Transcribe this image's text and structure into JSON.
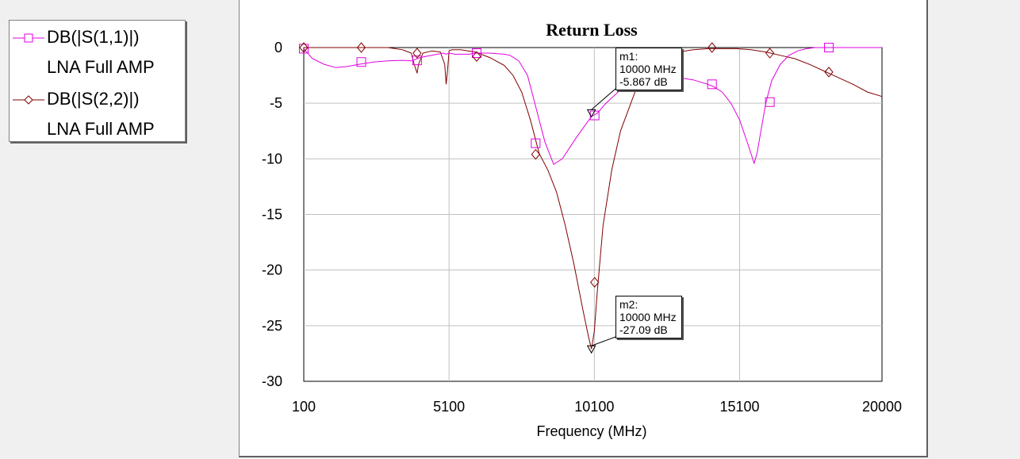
{
  "legend": {
    "items": [
      {
        "line1": "DB(|S(1,1)|)",
        "line2": "LNA Full AMP",
        "color": "#e000e0",
        "symbol": "square"
      },
      {
        "line1": "DB(|S(2,2)|)",
        "line2": "LNA Full AMP",
        "color": "#800000",
        "symbol": "diamond"
      }
    ]
  },
  "markers": [
    {
      "name": "m1:",
      "freq": "10000 MHz",
      "value": "-5.867 dB"
    },
    {
      "name": "m2:",
      "freq": "10000 MHz",
      "value": "-27.09 dB"
    }
  ],
  "chart_data": {
    "type": "line",
    "title": "Return Loss",
    "xlabel": "Frequency (MHz)",
    "ylabel": "",
    "xlim": [
      100,
      20000
    ],
    "ylim": [
      -30,
      0
    ],
    "x_ticks": [
      "100",
      "5100",
      "10100",
      "15100",
      "20000"
    ],
    "y_ticks": [
      "0",
      "-5",
      "-10",
      "-15",
      "-20",
      "-25",
      "-30"
    ],
    "grid": true,
    "series": [
      {
        "name": "DB(|S(1,1)|) LNA Full AMP",
        "color": "#e000e0",
        "symbol": "square",
        "x": [
          100,
          400,
          800,
          1200,
          1600,
          2000,
          2500,
          3000,
          3500,
          3800,
          4000,
          4100,
          4500,
          4900,
          5000,
          5100,
          5300,
          5800,
          6000,
          6200,
          6500,
          7000,
          7200,
          7500,
          7800,
          8100,
          8400,
          8700,
          9000,
          9500,
          10000,
          10200,
          10500,
          11000,
          11500,
          12000,
          12500,
          13000,
          13500,
          14000,
          14200,
          14500,
          14800,
          15100,
          15400,
          15600,
          15700,
          15800,
          16000,
          16200,
          16500,
          16800,
          17100,
          17400,
          17700,
          18000,
          18500,
          19000,
          19500,
          20000
        ],
        "y": [
          -0.1,
          -1.0,
          -1.5,
          -1.8,
          -1.7,
          -1.5,
          -1.3,
          -1.2,
          -1.15,
          -1.2,
          -1.0,
          -0.9,
          -0.7,
          -0.5,
          -0.6,
          -0.5,
          -0.6,
          -0.6,
          -0.5,
          -0.5,
          -0.5,
          -0.6,
          -0.7,
          -1.2,
          -2.5,
          -5.5,
          -8.5,
          -10.5,
          -10.0,
          -8.0,
          -6.2,
          -5.9,
          -5.0,
          -3.8,
          -3.0,
          -2.7,
          -2.6,
          -2.7,
          -2.9,
          -3.3,
          -3.5,
          -4.0,
          -5.0,
          -6.5,
          -8.8,
          -10.4,
          -9.5,
          -8.0,
          -5.0,
          -3.0,
          -1.5,
          -0.7,
          -0.3,
          -0.1,
          0,
          0,
          0,
          0,
          0,
          0
        ]
      },
      {
        "name": "DB(|S(2,2)|) LNA Full AMP",
        "color": "#800000",
        "symbol": "diamond",
        "x": [
          100,
          1000,
          2000,
          3000,
          3500,
          3800,
          3900,
          4000,
          4050,
          4200,
          4500,
          4800,
          4950,
          5000,
          5050,
          5100,
          5200,
          5500,
          6000,
          6500,
          7000,
          7300,
          7600,
          7900,
          8200,
          8500,
          8800,
          9100,
          9400,
          9700,
          9900,
          10000,
          10100,
          10200,
          10400,
          10700,
          11000,
          11500,
          12000,
          12500,
          13000,
          13500,
          14000,
          15000,
          15500,
          16000,
          16500,
          17000,
          17500,
          18000,
          18500,
          19000,
          19500,
          20000
        ],
        "y": [
          0,
          0,
          0,
          0,
          -0.2,
          -0.5,
          -1.5,
          -2.3,
          -1.5,
          -0.5,
          -0.3,
          -0.4,
          -1.5,
          -3.3,
          -2.0,
          -0.3,
          -0.2,
          -0.2,
          -0.4,
          -0.9,
          -1.6,
          -2.5,
          -4.0,
          -6.5,
          -9.5,
          -11.0,
          -13.0,
          -16.0,
          -19.5,
          -23.5,
          -26.0,
          -27.1,
          -25.5,
          -22.0,
          -16.0,
          -11.0,
          -7.5,
          -4.0,
          -2.0,
          -0.9,
          -0.4,
          -0.2,
          -0.1,
          -0.1,
          -0.2,
          -0.4,
          -0.7,
          -1.0,
          -1.5,
          -2.1,
          -2.7,
          -3.3,
          -4.0,
          -4.4
        ]
      }
    ],
    "symbol_points": [
      {
        "series": 0,
        "x": [
          100,
          2080,
          4000,
          6050,
          8080,
          10110,
          14150,
          16140,
          18170
        ],
        "y": [
          -0.1,
          -1.3,
          -1.15,
          -0.5,
          -8.6,
          -6.1,
          -3.3,
          -4.9,
          0
        ]
      },
      {
        "series": 1,
        "x": [
          100,
          2080,
          4000,
          6050,
          8080,
          10110,
          14150,
          16140,
          18170
        ],
        "y": [
          0,
          0,
          -0.5,
          -0.8,
          -9.6,
          -21.1,
          0,
          -0.5,
          -2.2
        ]
      }
    ],
    "marker_points": [
      {
        "x": 10000,
        "y": -5.867
      },
      {
        "x": 10000,
        "y": -27.09
      }
    ]
  }
}
